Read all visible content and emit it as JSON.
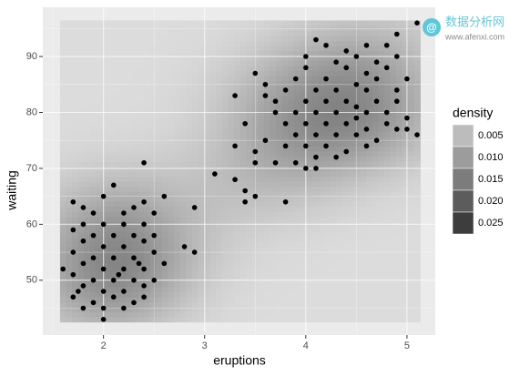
{
  "chart_data": {
    "type": "density-scatter",
    "x_label": "eruptions",
    "y_label": "waiting",
    "xlim": [
      1.4,
      5.28
    ],
    "ylim": [
      40.2,
      98.8
    ],
    "xticks": [
      2,
      3,
      4,
      5
    ],
    "yticks": [
      50,
      60,
      70,
      80,
      90
    ],
    "grid": true,
    "point_color": "#000000",
    "legend": {
      "title": "density",
      "position": "right",
      "breaks": [
        0.005,
        0.01,
        0.015,
        0.02,
        0.025
      ],
      "labels": [
        "0.005",
        "0.010",
        "0.015",
        "0.020",
        "0.025"
      ],
      "colors": [
        "#bcbcbc",
        "#9c9c9c",
        "#7c7c7c",
        "#5c5c5c",
        "#3d3d3d"
      ]
    },
    "x": [
      5.1,
      4.9,
      4.1,
      4.6,
      4.4,
      4.2,
      4.8,
      4.0,
      4.5,
      4.3,
      4.9,
      4.7,
      3.5,
      4.0,
      4.4,
      4.6,
      4.8,
      5.0,
      3.6,
      3.9,
      4.2,
      4.5,
      4.7,
      3.6,
      3.3,
      3.8,
      4.1,
      4.3,
      4.6,
      4.9,
      3.7,
      4.0,
      4.2,
      4.4,
      4.5,
      4.7,
      4.9,
      3.7,
      3.9,
      4.1,
      4.3,
      4.5,
      4.6,
      4.8,
      5.0,
      3.4,
      3.8,
      4.0,
      4.2,
      4.4,
      4.6,
      4.8,
      4.9,
      5.1,
      5.0,
      3.9,
      4.1,
      4.3,
      4.5,
      4.7,
      3.6,
      3.8,
      4.0,
      4.2,
      4.4,
      4.6,
      3.3,
      3.5,
      4.1,
      4.3,
      3.9,
      4.0,
      4.1,
      3.5,
      3.7,
      3.1,
      3.3,
      3.4,
      3.5,
      3.4,
      3.8,
      2.9,
      2.6,
      2.4,
      2.1,
      2.0,
      1.7,
      1.9,
      2.2,
      2.4,
      2.5,
      2.3,
      1.8,
      1.8,
      2.0,
      2.2,
      2.4,
      1.7,
      1.9,
      2.1,
      2.3,
      2.5,
      1.8,
      2.0,
      2.2,
      2.4,
      2.8,
      2.9,
      1.7,
      1.9,
      2.1,
      2.3,
      2.5,
      1.8,
      2.0,
      2.2,
      2.4,
      2.6,
      1.6,
      1.7,
      1.9,
      2.1,
      2.3,
      2.5,
      1.8,
      2.0,
      2.2,
      2.4,
      1.7,
      1.9,
      2.1,
      2.3,
      1.8,
      2.0,
      2.2,
      2.4,
      2.0,
      1.75,
      2.15,
      2.35
    ],
    "y": [
      96,
      94,
      93,
      92,
      91,
      92,
      92,
      90,
      90,
      89,
      90,
      89,
      87,
      88,
      88,
      87,
      88,
      86,
      85,
      86,
      86,
      85,
      86,
      83,
      83,
      84,
      84,
      84,
      84,
      84,
      82,
      82,
      82,
      82,
      81,
      82,
      82,
      80,
      80,
      80,
      80,
      79,
      80,
      80,
      79,
      78,
      78,
      78,
      78,
      78,
      77,
      78,
      77,
      76,
      77,
      76,
      76,
      76,
      76,
      75,
      75,
      74,
      74,
      74,
      73,
      74,
      74,
      73,
      72,
      72,
      71,
      70,
      70,
      71,
      71,
      69,
      68,
      66,
      65,
      64,
      64,
      63,
      65,
      71,
      67,
      65,
      64,
      62,
      62,
      64,
      62,
      63,
      63,
      60,
      60,
      60,
      60,
      59,
      58,
      58,
      58,
      58,
      57,
      56,
      56,
      57,
      56,
      55,
      55,
      54,
      54,
      54,
      55,
      53,
      52,
      52,
      52,
      53,
      52,
      51,
      50,
      50,
      50,
      50,
      49,
      48,
      48,
      49,
      47,
      46,
      47,
      46,
      45,
      45,
      45,
      47,
      43,
      48,
      51,
      53
    ]
  },
  "watermark": {
    "name": "数据分析网",
    "url": "www.afenxi.com"
  }
}
